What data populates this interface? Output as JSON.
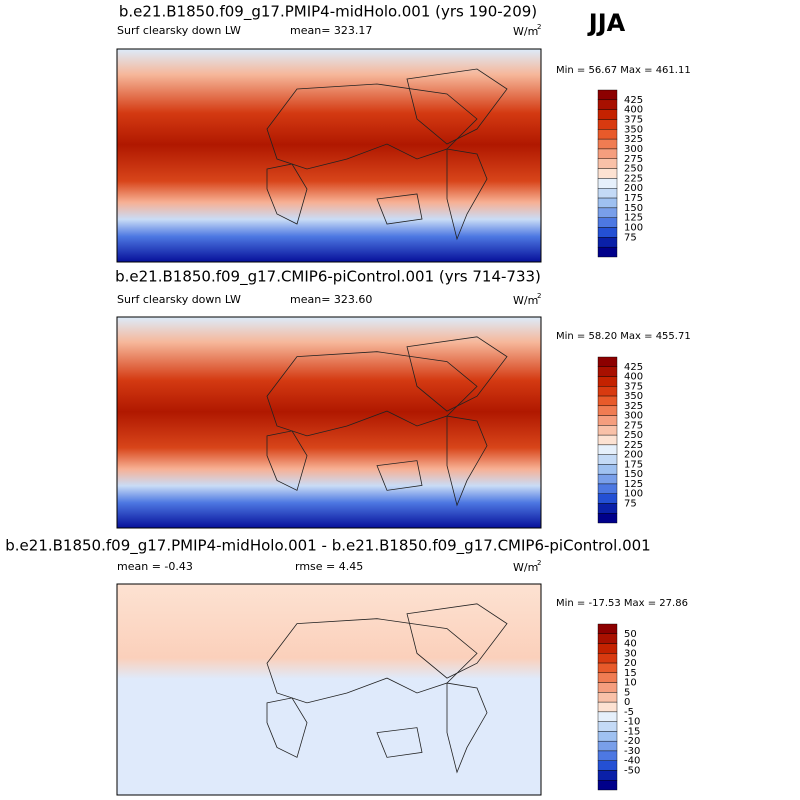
{
  "season": "JJA",
  "panels": [
    {
      "title": "b.e21.B1850.f09_g17.PMIP4-midHolo.001 (yrs 190-209)",
      "left": "Surf clearsky down LW",
      "center": "mean= 323.17",
      "units": "W/m",
      "units_exp": "2",
      "minmax": "Min =  56.67 Max = 461.11",
      "levels": [
        425,
        400,
        375,
        350,
        325,
        300,
        275,
        250,
        225,
        200,
        175,
        150,
        125,
        100,
        75
      ],
      "colors": [
        "#8c0000",
        "#a81000",
        "#c42200",
        "#d83a10",
        "#e85a2a",
        "#f07c52",
        "#f59e7e",
        "#f9c1a8",
        "#fde2d2",
        "#e6f0fb",
        "#c4daf6",
        "#9fc1f1",
        "#799fea",
        "#4d78e2",
        "#2450d4",
        "#0a20a8",
        "#00008a"
      ]
    },
    {
      "title": "b.e21.B1850.f09_g17.CMIP6-piControl.001 (yrs 714-733)",
      "left": "Surf clearsky down LW",
      "center": "mean= 323.60",
      "units": "W/m",
      "units_exp": "2",
      "minmax": "Min =  58.20 Max = 455.71",
      "levels": [
        425,
        400,
        375,
        350,
        325,
        300,
        275,
        250,
        225,
        200,
        175,
        150,
        125,
        100,
        75
      ],
      "colors": [
        "#8c0000",
        "#a81000",
        "#c42200",
        "#d83a10",
        "#e85a2a",
        "#f07c52",
        "#f59e7e",
        "#f9c1a8",
        "#fde2d2",
        "#e6f0fb",
        "#c4daf6",
        "#9fc1f1",
        "#799fea",
        "#4d78e2",
        "#2450d4",
        "#0a20a8",
        "#00008a"
      ]
    },
    {
      "title": "b.e21.B1850.f09_g17.PMIP4-midHolo.001 - b.e21.B1850.f09_g17.CMIP6-piControl.001",
      "left": "mean =  -0.43",
      "center": "rmse =  4.45",
      "units": "W/m",
      "units_exp": "2",
      "minmax": "Min = -17.53 Max =  27.86",
      "levels": [
        50,
        40,
        30,
        20,
        15,
        10,
        5,
        0,
        -5,
        -10,
        -15,
        -20,
        -30,
        -40,
        -50
      ],
      "colors": [
        "#8c0000",
        "#a81000",
        "#c42200",
        "#d83a10",
        "#e85a2a",
        "#f07c52",
        "#f59e7e",
        "#f9c1a8",
        "#fde2d2",
        "#e6f0fb",
        "#c4daf6",
        "#9fc1f1",
        "#799fea",
        "#4d78e2",
        "#2450d4",
        "#0a20a8",
        "#00008a"
      ]
    }
  ]
}
